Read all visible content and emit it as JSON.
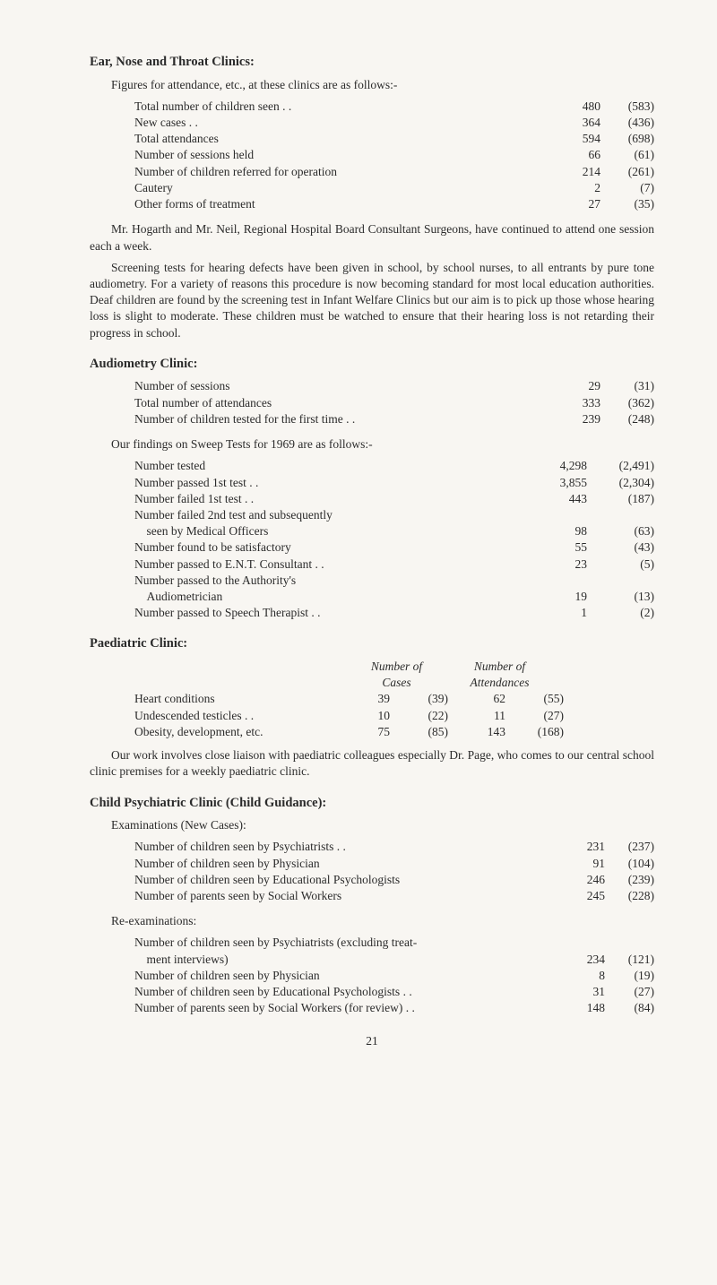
{
  "section_ent": {
    "heading": "Ear, Nose and Throat Clinics:",
    "intro": "Figures for attendance, etc., at these clinics are as follows:-",
    "rows": [
      {
        "label": "Total number of children seen . .",
        "v1": "480",
        "v2": "(583)"
      },
      {
        "label": "New cases . .",
        "v1": "364",
        "v2": "(436)"
      },
      {
        "label": "Total attendances",
        "v1": "594",
        "v2": "(698)"
      },
      {
        "label": "Number of sessions held",
        "v1": "66",
        "v2": "(61)"
      },
      {
        "label": "Number of children referred for operation",
        "v1": "214",
        "v2": "(261)"
      },
      {
        "label": "Cautery",
        "v1": "2",
        "v2": "(7)"
      },
      {
        "label": "Other forms of treatment",
        "v1": "27",
        "v2": "(35)"
      }
    ],
    "para1": "Mr. Hogarth and Mr. Neil, Regional Hospital Board Consultant Surgeons, have continued to attend one session each a week.",
    "para2": "Screening tests for hearing defects have been given in school, by school nurses, to all entrants by pure tone audiometry. For a variety of reasons this procedure is now becoming standard for most local education authorities. Deaf children are found by the screening test in Infant Welfare Clinics but our aim is to pick up those whose hearing loss is slight to moderate. These children must be watched to ensure that their hearing loss is not retarding their progress in school."
  },
  "section_audiometry": {
    "heading": "Audiometry Clinic:",
    "rows1": [
      {
        "label": "Number of sessions",
        "v1": "29",
        "v2": "(31)"
      },
      {
        "label": "Total number of attendances",
        "v1": "333",
        "v2": "(362)"
      },
      {
        "label": "Number of children tested for the first time . .",
        "v1": "239",
        "v2": "(248)"
      }
    ],
    "subhead": "Our findings on Sweep Tests for 1969 are as follows:-",
    "rows2": [
      {
        "label": "Number tested",
        "v1": "4,298",
        "v2": "(2,491)"
      },
      {
        "label": "Number passed 1st test . .",
        "v1": "3,855",
        "v2": "(2,304)"
      },
      {
        "label": "Number failed 1st test . .",
        "v1": "443",
        "v2": "(187)"
      },
      {
        "label": "Number failed 2nd test and subsequently",
        "v1": "",
        "v2": ""
      },
      {
        "label": "    seen by Medical Officers",
        "v1": "98",
        "v2": "(63)"
      },
      {
        "label": "Number found to be satisfactory",
        "v1": "55",
        "v2": "(43)"
      },
      {
        "label": "Number passed to E.N.T. Consultant . .",
        "v1": "23",
        "v2": "(5)"
      },
      {
        "label": "Number passed to the Authority's",
        "v1": "",
        "v2": ""
      },
      {
        "label": "    Audiometrician",
        "v1": "19",
        "v2": "(13)"
      },
      {
        "label": "Number passed to Speech Therapist . .",
        "v1": "1",
        "v2": "(2)"
      }
    ]
  },
  "section_paediatric": {
    "heading": "Paediatric Clinic:",
    "col1_header_l1": "Number of",
    "col1_header_l2": "Cases",
    "col2_header_l1": "Number of",
    "col2_header_l2": "Attendances",
    "rows": [
      {
        "label": "Heart conditions",
        "c1": "39",
        "c1p": "(39)",
        "c2": "62",
        "c2p": "(55)"
      },
      {
        "label": "Undescended testicles . .",
        "c1": "10",
        "c1p": "(22)",
        "c2": "11",
        "c2p": "(27)"
      },
      {
        "label": "Obesity, development, etc.",
        "c1": "75",
        "c1p": "(85)",
        "c2": "143",
        "c2p": "(168)"
      }
    ],
    "para": "Our work involves close liaison with paediatric colleagues especially Dr. Page, who comes to our central school clinic premises for a weekly paediatric clinic."
  },
  "section_child_psych": {
    "heading": "Child Psychiatric Clinic (Child Guidance):",
    "sub1": "Examinations (New Cases):",
    "rows1": [
      {
        "label": "Number of children seen by Psychiatrists . .",
        "v1": "231",
        "v2": "(237)"
      },
      {
        "label": "Number of children seen by Physician",
        "v1": "91",
        "v2": "(104)"
      },
      {
        "label": "Number of children seen by Educational Psychologists",
        "v1": "246",
        "v2": "(239)"
      },
      {
        "label": "Number of parents seen by Social Workers",
        "v1": "245",
        "v2": "(228)"
      }
    ],
    "sub2": "Re-examinations:",
    "rows2": [
      {
        "label": "Number of children seen by Psychiatrists (excluding treat-",
        "v1": "",
        "v2": ""
      },
      {
        "label": "    ment interviews)",
        "v1": "234",
        "v2": "(121)"
      },
      {
        "label": "Number of children seen by Physician",
        "v1": "8",
        "v2": "(19)"
      },
      {
        "label": "Number of children seen by Educational Psychologists . .",
        "v1": "31",
        "v2": "(27)"
      },
      {
        "label": "Number of parents seen by Social Workers (for review) . .",
        "v1": "148",
        "v2": "(84)"
      }
    ]
  },
  "page_number": "21",
  "colors": {
    "background": "#f8f6f2",
    "text": "#2b2b2b"
  }
}
